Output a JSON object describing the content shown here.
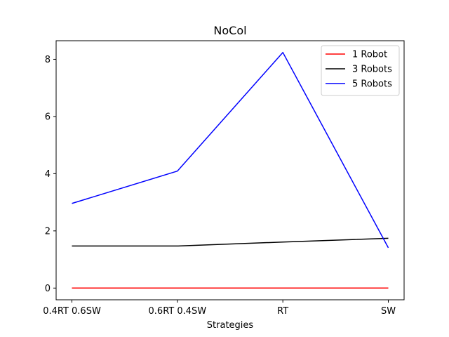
{
  "chart_data": {
    "type": "line",
    "title": "NoCol",
    "xlabel": "Strategies",
    "ylabel": "",
    "categories": [
      "0.4RT 0.6SW",
      "0.6RT 0.4SW",
      "RT",
      "SW"
    ],
    "ylim": [
      -0.41,
      8.65
    ],
    "yticks": [
      0,
      2,
      4,
      6,
      8
    ],
    "grid": false,
    "legend_position": "top-right",
    "series": [
      {
        "name": "1 Robot",
        "color": "#ff0000",
        "values": [
          0,
          0,
          0,
          0
        ]
      },
      {
        "name": "3 Robots",
        "color": "#000000",
        "values": [
          1.47,
          1.47,
          1.61,
          1.74
        ]
      },
      {
        "name": "5 Robots",
        "color": "#0000ff",
        "values": [
          2.96,
          4.09,
          8.24,
          1.41
        ]
      }
    ]
  }
}
